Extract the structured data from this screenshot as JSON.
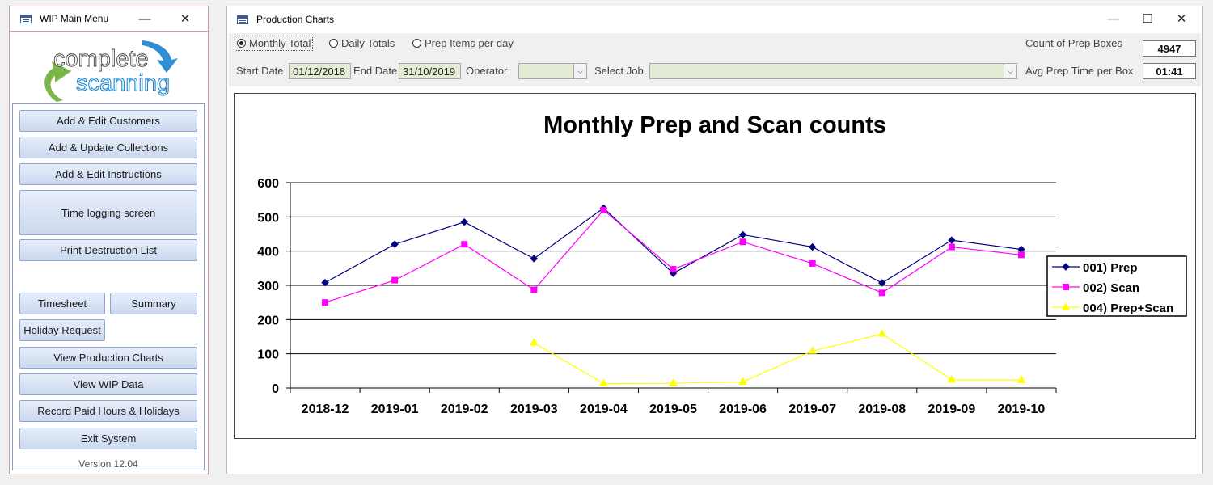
{
  "wip_window": {
    "title": "WIP Main Menu",
    "logo_line1": "complete",
    "logo_line2": "scanning",
    "buttons": {
      "add_edit_customers": "Add & Edit Customers",
      "add_update_collections": "Add & Update Collections",
      "add_edit_instructions": "Add & Edit Instructions",
      "time_logging": "Time logging screen",
      "print_destruction": "Print Destruction List",
      "timesheet": "Timesheet",
      "summary": "Summary",
      "holiday_request": "Holiday Request",
      "view_production_charts": "View Production Charts",
      "view_wip_data": "View WIP Data",
      "record_paid_hours": "Record Paid Hours & Holidays",
      "exit_system": "Exit System"
    },
    "version": "Version 12.04"
  },
  "prod_window": {
    "title": "Production Charts",
    "radios": {
      "monthly": "Monthly Total",
      "daily": "Daily Totals",
      "prep_items": "Prep Items per day",
      "selected": "monthly"
    },
    "start_date_label": "Start Date",
    "start_date": "01/12/2018",
    "end_date_label": "End Date",
    "end_date": "31/10/2019",
    "operator_label": "Operator",
    "operator_value": "",
    "select_job_label": "Select Job",
    "select_job_value": "",
    "count_label": "Count of Prep Boxes",
    "count_value": "4947",
    "avg_label": "Avg Prep Time per Box",
    "avg_value": "01:41"
  },
  "chart_data": {
    "type": "line",
    "title": "Monthly Prep and Scan counts",
    "categories": [
      "2018-12",
      "2019-01",
      "2019-02",
      "2019-03",
      "2019-04",
      "2019-05",
      "2019-06",
      "2019-07",
      "2019-08",
      "2019-09",
      "2019-10"
    ],
    "ylim": [
      0,
      600
    ],
    "yticks": [
      0,
      100,
      200,
      300,
      400,
      500,
      600
    ],
    "grid": true,
    "legend_position": "right",
    "series": [
      {
        "name": "001) Prep",
        "color": "#000080",
        "marker": "diamond",
        "values": [
          308,
          420,
          485,
          378,
          526,
          335,
          448,
          412,
          307,
          432,
          405
        ]
      },
      {
        "name": "002) Scan",
        "color": "#ff00ff",
        "marker": "square",
        "values": [
          250,
          315,
          420,
          287,
          520,
          347,
          427,
          364,
          278,
          412,
          389
        ]
      },
      {
        "name": "004) Prep+Scan",
        "color": "#ffff00",
        "marker": "triangle",
        "values": [
          null,
          null,
          null,
          132,
          13,
          14,
          18,
          108,
          158,
          24,
          23
        ]
      }
    ]
  }
}
